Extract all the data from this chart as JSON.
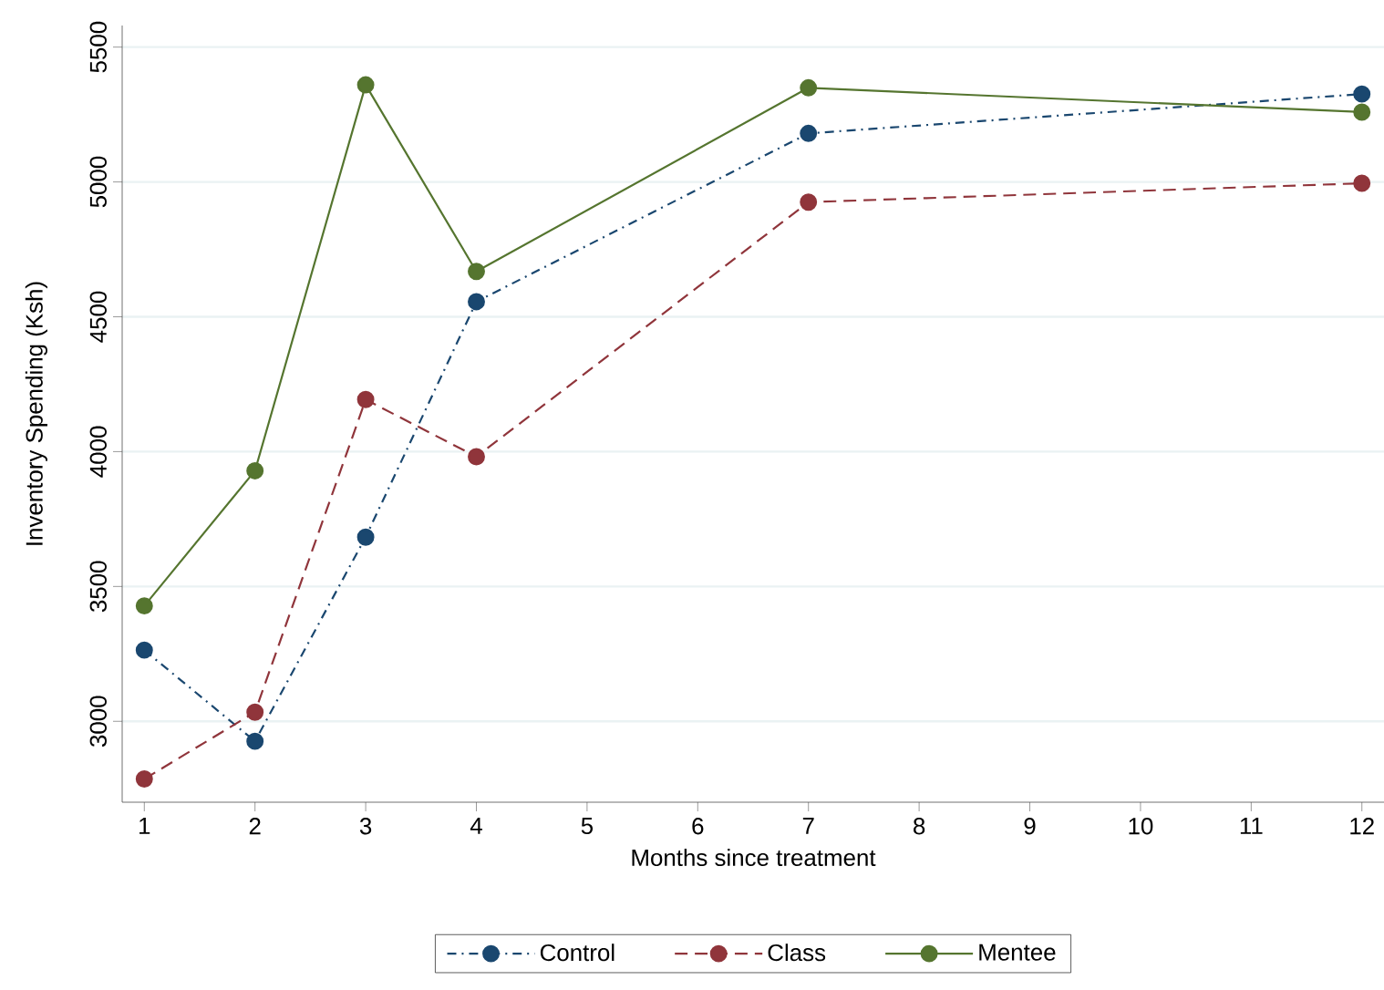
{
  "chart_data": {
    "type": "line",
    "xlabel": "Months since treatment",
    "ylabel": "Inventory Spending (Ksh)",
    "x": [
      1,
      2,
      3,
      4,
      7,
      12
    ],
    "series": [
      {
        "name": "Control",
        "color": "#1a476f",
        "line_style": "dashdot",
        "values": [
          3264,
          2926,
          3683,
          4556,
          5180,
          5326
        ]
      },
      {
        "name": "Class",
        "color": "#90353b",
        "line_style": "dashed",
        "values": [
          2786,
          3034,
          4193,
          3981,
          4925,
          4995
        ]
      },
      {
        "name": "Mentee",
        "color": "#55752f",
        "line_style": "solid",
        "values": [
          3428,
          3929,
          5360,
          4668,
          5349,
          5259
        ]
      }
    ],
    "xlim": [
      0.8,
      12.2
    ],
    "ylim": [
      2700,
      5580
    ],
    "xticks": [
      1,
      2,
      3,
      4,
      5,
      6,
      7,
      8,
      9,
      10,
      11,
      12
    ],
    "yticks": [
      3000,
      3500,
      4000,
      4500,
      5000,
      5500
    ],
    "grid": "y",
    "legend": "bottom",
    "marker": "circle"
  }
}
